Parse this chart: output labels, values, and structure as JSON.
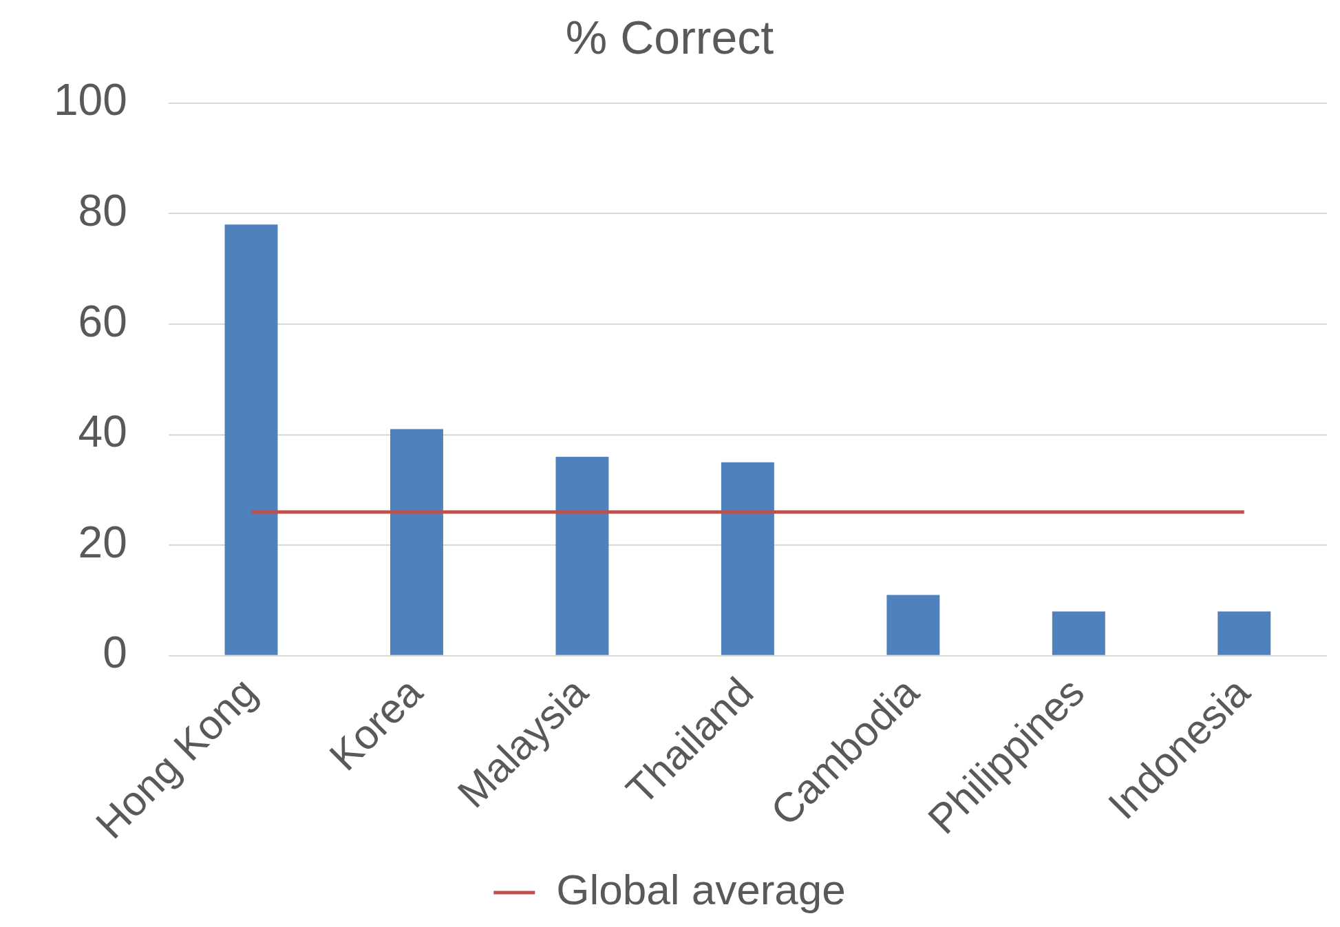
{
  "chart_data": {
    "type": "bar",
    "title": "% Correct",
    "categories": [
      "Hong Kong",
      "Korea",
      "Malaysia",
      "Thailand",
      "Cambodia",
      "Philippines",
      "Indonesia"
    ],
    "series": [
      {
        "color": "#4f81bd",
        "values": [
          78,
          41,
          36,
          35,
          11,
          8,
          8
        ]
      },
      {
        "type": "line",
        "name": "Global average",
        "color": "#c0504d",
        "values": [
          26,
          26,
          26,
          26,
          26,
          26,
          26
        ]
      }
    ],
    "ylim": [
      0,
      100
    ],
    "yticks": [
      0,
      20,
      40,
      60,
      80,
      100
    ],
    "grid": "y",
    "legend": "bottom"
  }
}
